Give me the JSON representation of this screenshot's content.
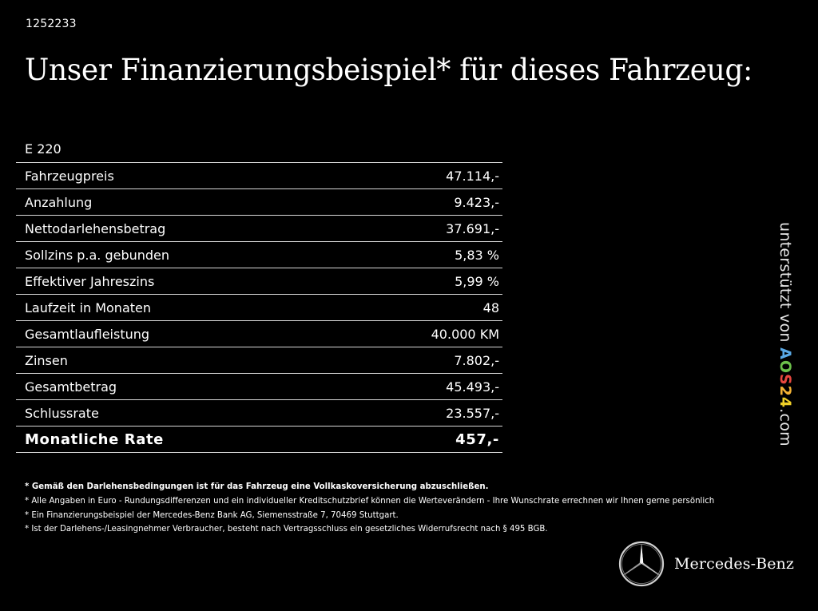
{
  "reference_number": "1252233",
  "headline": "Unser Finanzierungsbeispiel* für dieses Fahrzeug:",
  "model": "E 220",
  "rows": [
    {
      "label": "Fahrzeugpreis",
      "value": "47.114,-"
    },
    {
      "label": "Anzahlung",
      "value": "9.423,-"
    },
    {
      "label": "Nettodarlehensbetrag",
      "value": "37.691,-"
    },
    {
      "label": "Sollzins p.a. gebunden",
      "value": "5,83 %"
    },
    {
      "label": "Effektiver Jahreszins",
      "value": "5,99 %"
    },
    {
      "label": "Laufzeit in Monaten",
      "value": "48"
    },
    {
      "label": "Gesamtlaufleistung",
      "value": "40.000 KM"
    },
    {
      "label": "Zinsen",
      "value": "7.802,-"
    },
    {
      "label": "Gesamtbetrag",
      "value": "45.493,-"
    },
    {
      "label": "Schlussrate",
      "value": "23.557,-"
    }
  ],
  "monthly": {
    "label": "Monatliche Rate",
    "value": "457,-"
  },
  "footnotes": [
    "* Gemäß den Darlehensbedingungen ist für das Fahrzeug eine Vollkaskoversicherung abzuschließen.",
    "* Alle Angaben in Euro - Rundungsdifferenzen und ein individueller Kreditschutzbrief können die Werteverändern - Ihre Wunschrate errechnen wir Ihnen gerne persönlich",
    "* Ein Finanzierungsbeispiel der Mercedes-Benz Bank AG, Siemensstraße 7, 70469 Stuttgart.",
    "* Ist der Darlehens-/Leasingnehmer Verbraucher, besteht nach Vertragsschluss ein gesetzliches Widerrufsrecht nach § 495 BGB."
  ],
  "side_credit": {
    "prefix": "unterstützt von ",
    "logo_letters": [
      {
        "char": "A",
        "color": "#5aa9e6"
      },
      {
        "char": "O",
        "color": "#6cc04a"
      },
      {
        "char": "S",
        "color": "#e8483f"
      },
      {
        "char": "2",
        "color": "#f5b335"
      },
      {
        "char": "4",
        "color": "#f0d028"
      }
    ],
    "suffix": ".com"
  },
  "brand": {
    "name": "Mercedes-Benz",
    "icon": "three-pointed-star-icon"
  }
}
